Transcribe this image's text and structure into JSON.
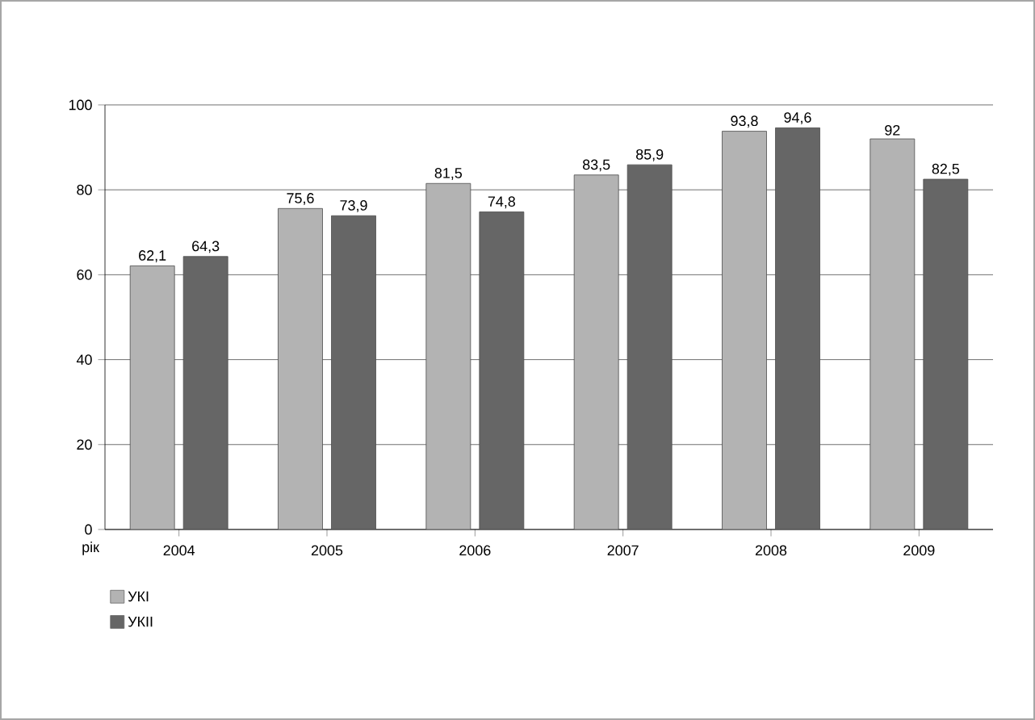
{
  "chart_data": {
    "type": "bar",
    "xlabel": "рік",
    "categories": [
      "2004",
      "2005",
      "2006",
      "2007",
      "2008",
      "2009"
    ],
    "series": [
      {
        "name": "УКІ",
        "color": "#b3b3b3",
        "values": [
          62.1,
          75.6,
          81.5,
          83.5,
          93.8,
          92
        ],
        "value_labels": [
          "62,1",
          "75,6",
          "81,5",
          "83,5",
          "93,8",
          "92"
        ]
      },
      {
        "name": "УКІІ",
        "color": "#666666",
        "values": [
          64.3,
          73.9,
          74.8,
          85.9,
          94.6,
          82.5
        ],
        "value_labels": [
          "64,3",
          "73,9",
          "74,8",
          "85,9",
          "94,6",
          "82,5"
        ]
      }
    ],
    "ylim": [
      0,
      100
    ],
    "yticks": [
      0,
      20,
      40,
      60,
      80,
      100
    ],
    "grid": "y",
    "legend": "bottom left"
  }
}
